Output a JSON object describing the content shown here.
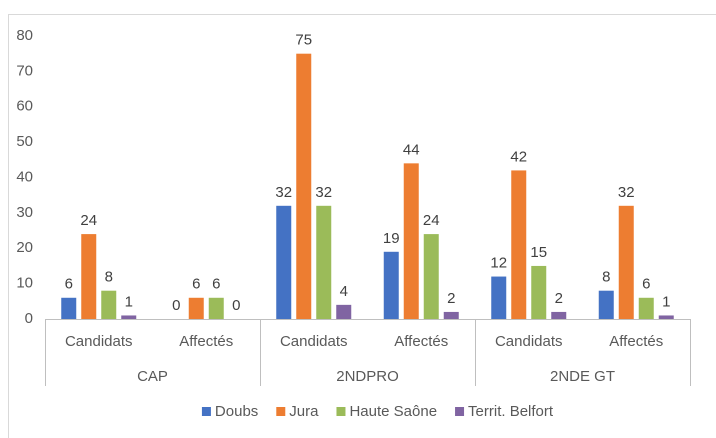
{
  "chart_data": {
    "type": "bar",
    "categories": [
      "Candidats",
      "Affectés",
      "Candidats",
      "Affectés",
      "Candidats",
      "Affectés"
    ],
    "groups": [
      "CAP",
      "2NDPRO",
      "2NDE GT"
    ],
    "series": [
      {
        "name": "Doubs",
        "color": "#4472c4",
        "values": [
          6,
          0,
          32,
          19,
          12,
          8
        ]
      },
      {
        "name": "Jura",
        "color": "#ed7d31",
        "values": [
          24,
          6,
          75,
          44,
          42,
          32
        ]
      },
      {
        "name": "Haute Saône",
        "color": "#9bbb59",
        "values": [
          8,
          6,
          32,
          24,
          15,
          6
        ]
      },
      {
        "name": "Territ. Belfort",
        "color": "#8064a2",
        "values": [
          1,
          0,
          4,
          2,
          2,
          1
        ]
      }
    ],
    "ylim": [
      0,
      80
    ],
    "yticks": [
      0,
      10,
      20,
      30,
      40,
      50,
      60,
      70,
      80
    ],
    "grid": false,
    "legend": "bottom"
  }
}
